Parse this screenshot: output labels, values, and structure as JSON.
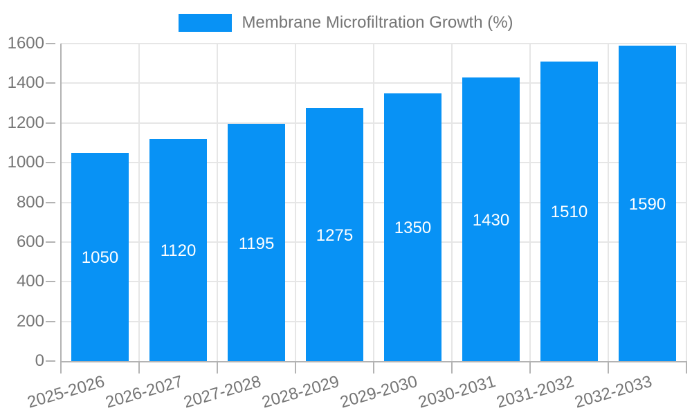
{
  "legend": {
    "label": "Membrane Microfiltration Growth (%)"
  },
  "chart_data": {
    "type": "bar",
    "title": "Membrane Microfiltration Growth (%)",
    "categories": [
      "2025-2026",
      "2026-2027",
      "2027-2028",
      "2028-2029",
      "2029-2030",
      "2030-2031",
      "2031-2032",
      "2032-2033"
    ],
    "series": [
      {
        "name": "Membrane Microfiltration Growth (%)",
        "values": [
          1050,
          1120,
          1195,
          1275,
          1350,
          1430,
          1510,
          1590
        ]
      }
    ],
    "values": [
      1050,
      1120,
      1195,
      1275,
      1350,
      1430,
      1510,
      1590
    ],
    "bar_labels_shown": true,
    "bar_label_position": "inside-middle",
    "xlabel": "",
    "ylabel": "",
    "ylim": [
      0,
      1600
    ],
    "ytick_step": 200,
    "yticks": [
      0,
      200,
      400,
      600,
      800,
      1000,
      1200,
      1400,
      1600
    ],
    "grid": {
      "horizontal": true,
      "vertical": true
    },
    "legend_position": "top-center",
    "x_label_rotation_deg": -16,
    "colors": {
      "bar": "#0892f5",
      "bar_label": "#ffffff",
      "axis_text": "#757575",
      "gridline": "#e6e6e6",
      "axis_line": "#b3b3b3",
      "background": "#ffffff"
    }
  }
}
